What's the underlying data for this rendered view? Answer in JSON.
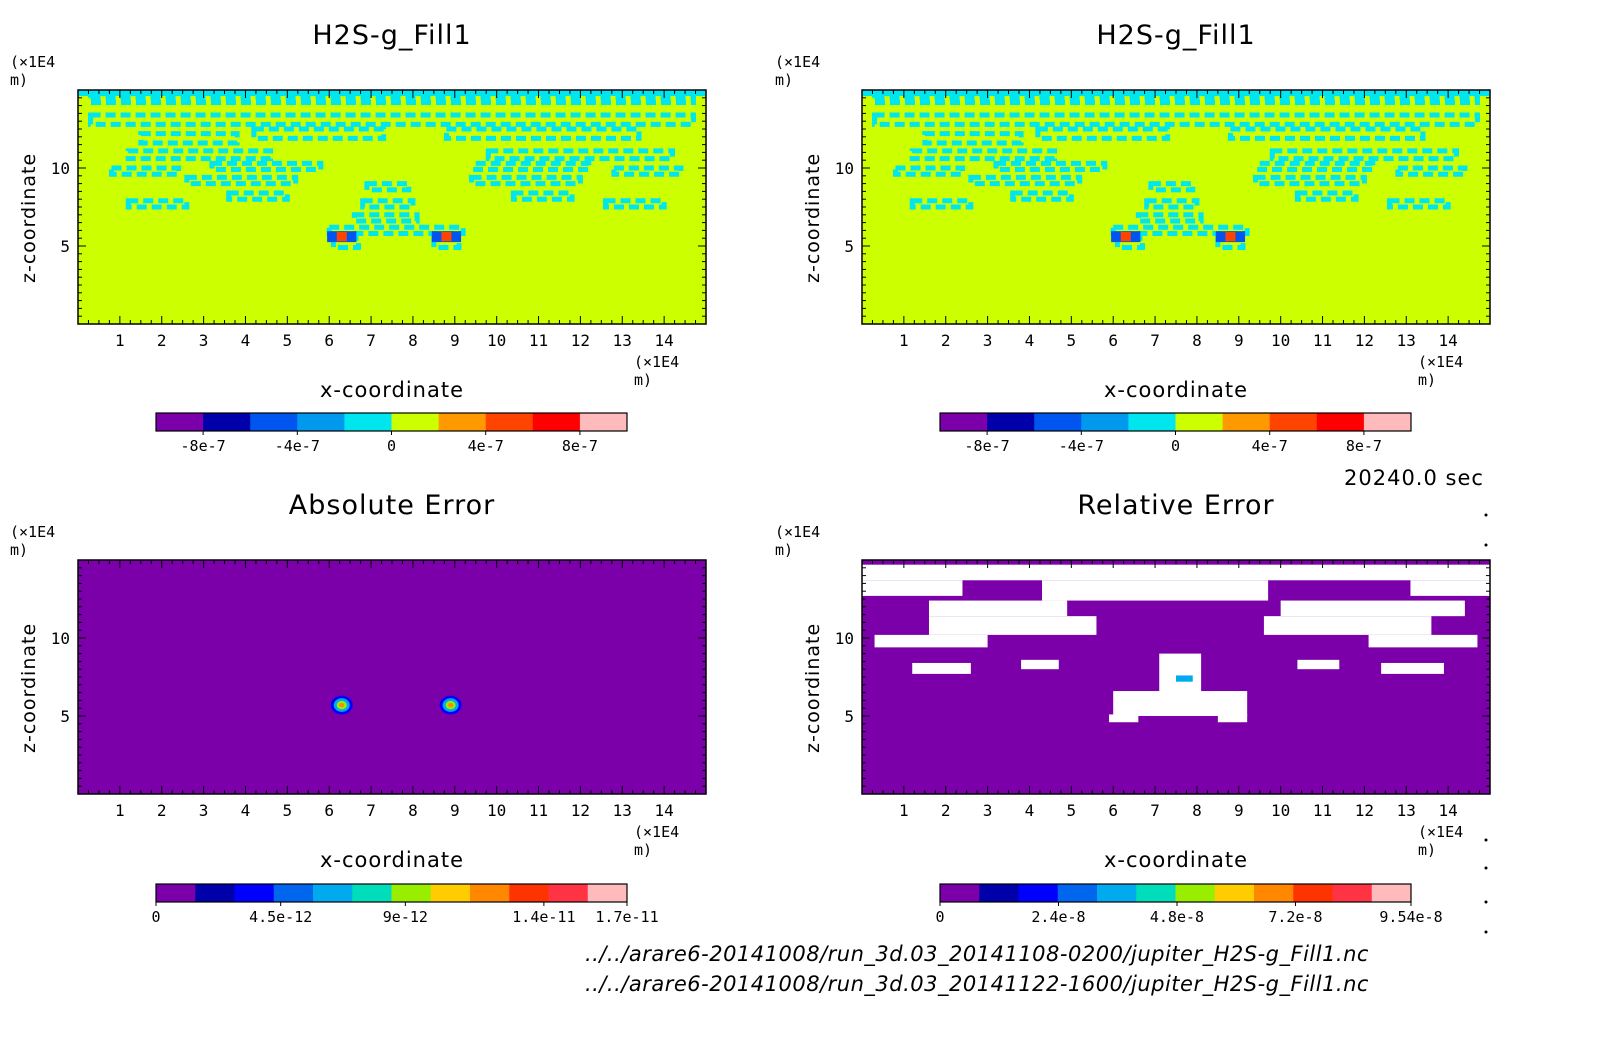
{
  "colors": {
    "signed_scale": [
      "#7b00aa",
      "#0000aa",
      "#0055ee",
      "#0099ee",
      "#00e6ee",
      "#ccff00",
      "#ff9900",
      "#ff4400",
      "#ff0000",
      "#ffbbbb"
    ],
    "error_scale": [
      "#7b00aa",
      "#0000aa",
      "#0000ff",
      "#0066ee",
      "#00aaee",
      "#00ddbb",
      "#99ee00",
      "#ffcc00",
      "#ff8800",
      "#ff3300",
      "#ff3344",
      "#ffbbbb"
    ],
    "field_fill": "#ccff00",
    "field_pattern": "#00e6ee",
    "error_background": "#7b00aa",
    "relative_blank": "#ffffff"
  },
  "timestamp": "20240.0 sec",
  "file_paths": [
    "../../arare6-20141008/run_3d.03_20141108-0200/jupiter_H2S-g_Fill1.nc",
    "../../arare6-20141008/run_3d.03_20141122-1600/jupiter_H2S-g_Fill1.nc"
  ],
  "chart_data": [
    {
      "type": "heatmap",
      "title": "H2S-g_Fill1",
      "xlabel": "x-coordinate",
      "ylabel": "z-coordinate",
      "x_unit": "(×1E4 m)",
      "y_unit": "(×1E4 m)",
      "xlim": [
        0,
        15
      ],
      "ylim": [
        0,
        15
      ],
      "x_ticks": [
        "1",
        "2",
        "3",
        "4",
        "5",
        "6",
        "7",
        "8",
        "9",
        "10",
        "11",
        "12",
        "13",
        "14"
      ],
      "y_ticks": [
        "5",
        "10"
      ],
      "colorbar": {
        "range": [
          -1e-06,
          1e-06
        ],
        "tick_labels": [
          "-8e-7",
          "-4e-7",
          "0",
          "4e-7",
          "8e-7"
        ]
      }
    },
    {
      "type": "heatmap",
      "title": "H2S-g_Fill1",
      "xlabel": "x-coordinate",
      "ylabel": "z-coordinate",
      "x_unit": "(×1E4 m)",
      "y_unit": "(×1E4 m)",
      "xlim": [
        0,
        15
      ],
      "ylim": [
        0,
        15
      ],
      "x_ticks": [
        "1",
        "2",
        "3",
        "4",
        "5",
        "6",
        "7",
        "8",
        "9",
        "10",
        "11",
        "12",
        "13",
        "14"
      ],
      "y_ticks": [
        "5",
        "10"
      ],
      "colorbar": {
        "range": [
          -1e-06,
          1e-06
        ],
        "tick_labels": [
          "-8e-7",
          "-4e-7",
          "0",
          "4e-7",
          "8e-7"
        ]
      }
    },
    {
      "type": "heatmap",
      "title": "Absolute Error",
      "xlabel": "x-coordinate",
      "ylabel": "z-coordinate",
      "x_unit": "(×1E4 m)",
      "y_unit": "(×1E4 m)",
      "xlim": [
        0,
        15
      ],
      "ylim": [
        0,
        15
      ],
      "x_ticks": [
        "1",
        "2",
        "3",
        "4",
        "5",
        "6",
        "7",
        "8",
        "9",
        "10",
        "11",
        "12",
        "13",
        "14"
      ],
      "y_ticks": [
        "5",
        "10"
      ],
      "colorbar": {
        "range": [
          0,
          1.7e-11
        ],
        "tick_labels": [
          "0",
          "4.5e-12",
          "9e-12",
          "1.4e-11",
          "1.7e-11"
        ]
      }
    },
    {
      "type": "heatmap",
      "title": "Relative Error",
      "xlabel": "x-coordinate",
      "ylabel": "z-coordinate",
      "x_unit": "(×1E4 m)",
      "y_unit": "(×1E4 m)",
      "xlim": [
        0,
        15
      ],
      "ylim": [
        0,
        15
      ],
      "x_ticks": [
        "1",
        "2",
        "3",
        "4",
        "5",
        "6",
        "7",
        "8",
        "9",
        "10",
        "11",
        "12",
        "13",
        "14"
      ],
      "y_ticks": [
        "5",
        "10"
      ],
      "colorbar": {
        "range": [
          0,
          9.54e-08
        ],
        "tick_labels": [
          "0",
          "2.4e-8",
          "4.8e-8",
          "7.2e-8",
          "9.54e-8"
        ]
      }
    }
  ]
}
